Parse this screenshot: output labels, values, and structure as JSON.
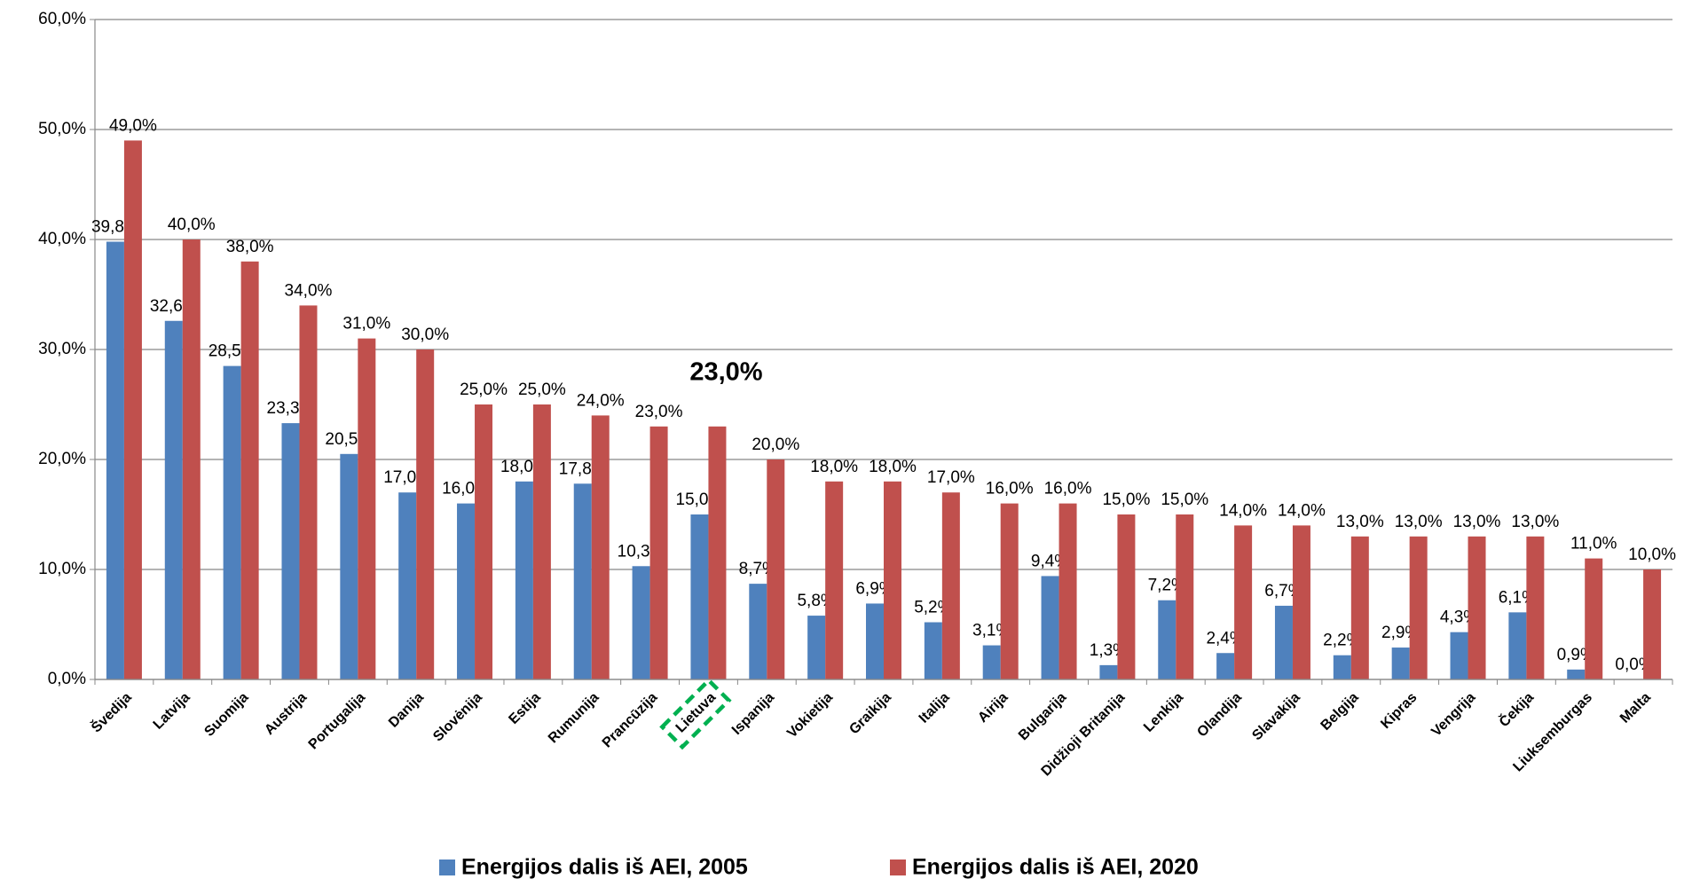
{
  "chart_data": {
    "type": "bar",
    "categories": [
      "Švedija",
      "Latvija",
      "Suomija",
      "Austrija",
      "Portugalija",
      "Danija",
      "Slovėnija",
      "Estija",
      "Rumunija",
      "Prancūzija",
      "Lietuva",
      "Ispanija",
      "Vokietija",
      "Graikija",
      "Italija",
      "Airija",
      "Bulgarija",
      "Didžioji Britanija",
      "Lenkija",
      "Olandija",
      "Slavakija",
      "Belgija",
      "Kipras",
      "Vengrija",
      "Čekija",
      "Liuksemburgas",
      "Malta"
    ],
    "series": [
      {
        "name": "Energijos dalis iš AEI, 2005",
        "color": "#4f81bd",
        "values": [
          39.8,
          32.6,
          28.5,
          23.3,
          20.5,
          17.0,
          16.0,
          18.0,
          17.8,
          10.3,
          15.0,
          8.7,
          5.8,
          6.9,
          5.2,
          3.1,
          9.4,
          1.3,
          7.2,
          2.4,
          6.7,
          2.2,
          2.9,
          4.3,
          6.1,
          0.9,
          0.0
        ],
        "value_labels": [
          "39,8%",
          "32,6%",
          "28,5%",
          "23,3%",
          "20,5%",
          "17,0%",
          "16,0%",
          "18,0%",
          "17,8%",
          "10,3%",
          "15,0%",
          "8,7%",
          "5,8%",
          "6,9%",
          "5,2%",
          "3,1%",
          "9,4%",
          "1,3%",
          "7,2%",
          "2,4%",
          "6,7%",
          "2,2%",
          "2,9%",
          "4,3%",
          "6,1%",
          "0,9%",
          "0,0%"
        ]
      },
      {
        "name": "Energijos dalis iš AEI, 2020",
        "color": "#c0504d",
        "values": [
          49.0,
          40.0,
          38.0,
          34.0,
          31.0,
          30.0,
          25.0,
          25.0,
          24.0,
          23.0,
          23.0,
          20.0,
          18.0,
          18.0,
          17.0,
          16.0,
          16.0,
          15.0,
          15.0,
          14.0,
          14.0,
          13.0,
          13.0,
          13.0,
          13.0,
          11.0,
          10.0
        ],
        "value_labels": [
          "49,0%",
          "40,0%",
          "38,0%",
          "34,0%",
          "31,0%",
          "30,0%",
          "25,0%",
          "25,0%",
          "24,0%",
          "23,0%",
          "23,0%",
          "20,0%",
          "18,0%",
          "18,0%",
          "17,0%",
          "16,0%",
          "16,0%",
          "15,0%",
          "15,0%",
          "14,0%",
          "14,0%",
          "13,0%",
          "13,0%",
          "13,0%",
          "13,0%",
          "11,0%",
          "10,0%"
        ]
      }
    ],
    "ylim": [
      0,
      60
    ],
    "yticks": [
      {
        "value": 0,
        "label": "0,0%"
      },
      {
        "value": 10,
        "label": "10,0%"
      },
      {
        "value": 20,
        "label": "20,0%"
      },
      {
        "value": 30,
        "label": "30,0%"
      },
      {
        "value": 40,
        "label": "40,0%"
      },
      {
        "value": 50,
        "label": "50,0%"
      },
      {
        "value": 60,
        "label": "60,0%"
      }
    ],
    "grid": true,
    "legend": "bottom",
    "highlight": {
      "category": 10,
      "color": "#00b050"
    }
  }
}
